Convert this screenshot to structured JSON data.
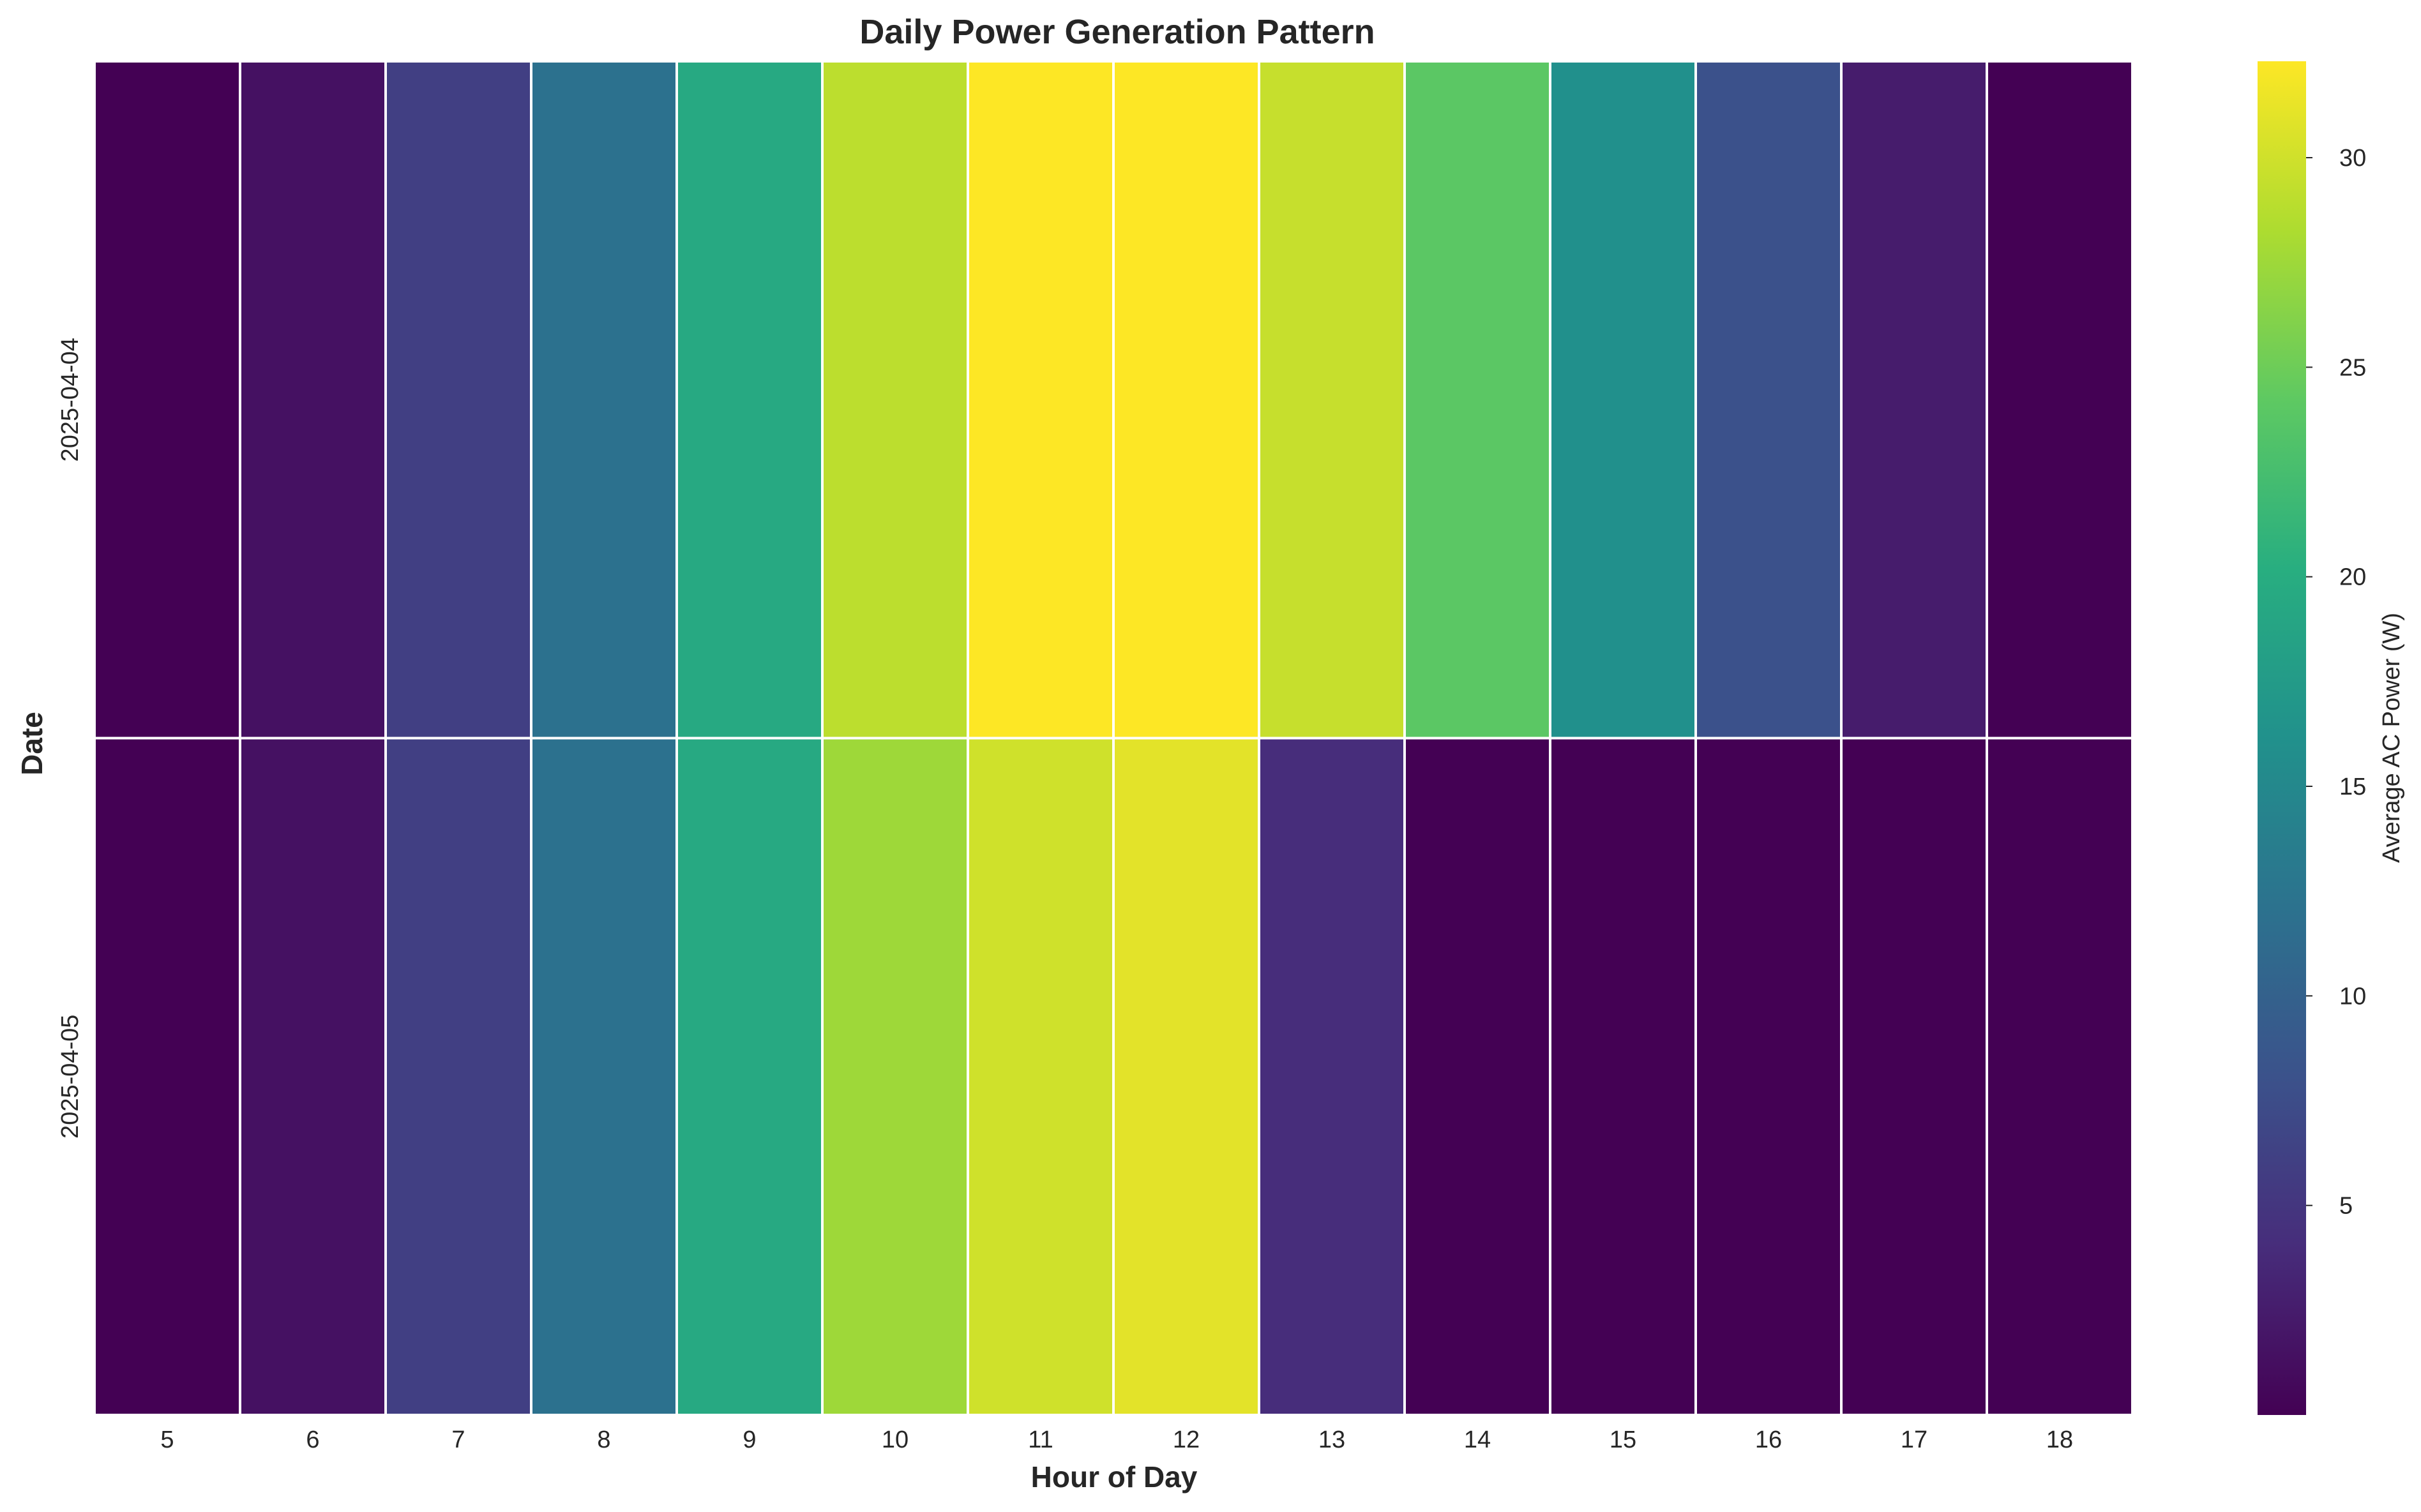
{
  "chart_data": {
    "type": "heatmap",
    "title": "Daily Power Generation Pattern",
    "xlabel": "Hour of Day",
    "ylabel": "Date",
    "x": [
      5,
      6,
      7,
      8,
      9,
      10,
      11,
      12,
      13,
      14,
      15,
      16,
      17,
      18
    ],
    "y": [
      "2025-04-04",
      "2025-04-05"
    ],
    "values": [
      [
        0.0,
        1.5,
        6.0,
        12.0,
        19.5,
        29.0,
        32.3,
        32.3,
        29.5,
        24.0,
        16.0,
        8.0,
        2.5,
        0.0
      ],
      [
        0.0,
        1.5,
        6.0,
        12.0,
        19.5,
        27.5,
        30.0,
        31.0,
        4.0,
        0.0,
        0.0,
        0.0,
        0.0,
        0.0
      ]
    ],
    "colormap": "viridis",
    "vmin": 0.0,
    "vmax": 32.3,
    "cell_separator_color": "#ffffff",
    "colorbar": {
      "label": "Average AC Power (W)",
      "ticks": [
        5,
        10,
        15,
        20,
        25,
        30
      ]
    },
    "grid": false,
    "legend": "none"
  }
}
